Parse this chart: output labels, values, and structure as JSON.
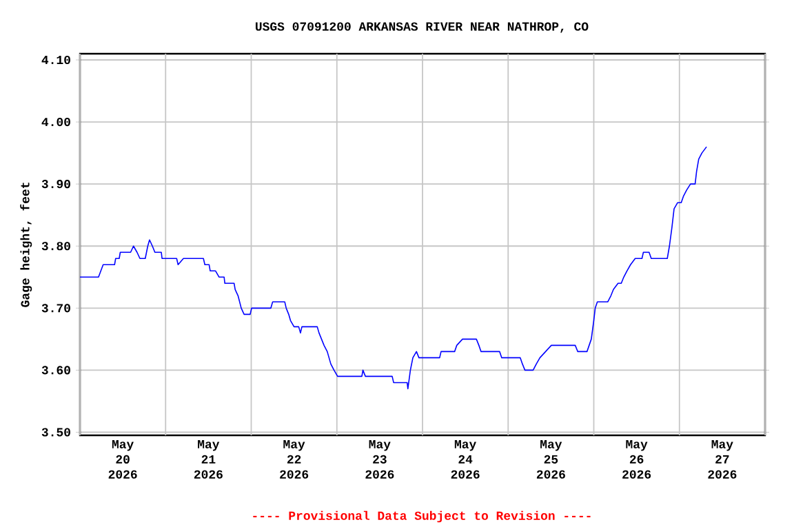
{
  "chart_data": {
    "type": "line",
    "title": "USGS 07091200 ARKANSAS RIVER NEAR NATHROP, CO",
    "ylabel": "Gage height, feet",
    "annotations": [
      "---- Provisional Data Subject to Revision ----"
    ],
    "x": [
      "2026-05-20T00:00",
      "2026-05-20T05:12",
      "2026-05-20T06:30",
      "2026-05-20T09:42",
      "2026-05-20T10:00",
      "2026-05-20T11:00",
      "2026-05-20T11:18",
      "2026-05-20T14:12",
      "2026-05-20T15:00",
      "2026-05-20T16:00",
      "2026-05-20T16:48",
      "2026-05-20T18:18",
      "2026-05-20T19:00",
      "2026-05-20T19:30",
      "2026-05-20T20:18",
      "2026-05-20T21:00",
      "2026-05-20T22:48",
      "2026-05-20T23:00",
      "2026-05-21T03:06",
      "2026-05-21T03:30",
      "2026-05-21T05:00",
      "2026-05-21T10:36",
      "2026-05-21T11:00",
      "2026-05-21T12:12",
      "2026-05-21T12:30",
      "2026-05-21T14:00",
      "2026-05-21T15:00",
      "2026-05-21T16:24",
      "2026-05-21T16:36",
      "2026-05-21T19:12",
      "2026-05-21T19:30",
      "2026-05-21T20:18",
      "2026-05-21T21:12",
      "2026-05-21T22:00",
      "2026-05-21T23:42",
      "2026-05-22T00:06",
      "2026-05-22T05:30",
      "2026-05-22T06:00",
      "2026-05-22T09:24",
      "2026-05-22T09:48",
      "2026-05-22T10:30",
      "2026-05-22T11:00",
      "2026-05-22T12:00",
      "2026-05-22T13:18",
      "2026-05-22T13:48",
      "2026-05-22T14:12",
      "2026-05-22T18:30",
      "2026-05-22T19:00",
      "2026-05-22T19:42",
      "2026-05-22T20:24",
      "2026-05-22T21:18",
      "2026-05-22T22:18",
      "2026-05-22T23:12",
      "2026-05-23T00:12",
      "2026-05-23T07:00",
      "2026-05-23T07:18",
      "2026-05-23T08:00",
      "2026-05-23T15:30",
      "2026-05-23T15:54",
      "2026-05-23T19:42",
      "2026-05-23T19:54",
      "2026-05-23T20:36",
      "2026-05-23T21:18",
      "2026-05-23T22:18",
      "2026-05-23T23:00",
      "2026-05-24T04:48",
      "2026-05-24T05:12",
      "2026-05-24T09:00",
      "2026-05-24T09:36",
      "2026-05-24T11:12",
      "2026-05-24T15:06",
      "2026-05-24T15:48",
      "2026-05-24T16:24",
      "2026-05-24T21:36",
      "2026-05-24T22:12",
      "2026-05-25T03:24",
      "2026-05-25T04:00",
      "2026-05-25T04:42",
      "2026-05-25T07:00",
      "2026-05-25T07:54",
      "2026-05-25T08:54",
      "2026-05-25T10:30",
      "2026-05-25T12:06",
      "2026-05-25T18:48",
      "2026-05-25T19:30",
      "2026-05-25T22:06",
      "2026-05-25T22:42",
      "2026-05-25T23:18",
      "2026-05-26T00:00",
      "2026-05-26T00:24",
      "2026-05-26T01:00",
      "2026-05-26T03:54",
      "2026-05-26T04:48",
      "2026-05-26T05:30",
      "2026-05-26T06:48",
      "2026-05-26T07:42",
      "2026-05-26T08:24",
      "2026-05-26T09:18",
      "2026-05-26T10:18",
      "2026-05-26T11:36",
      "2026-05-26T13:30",
      "2026-05-26T13:54",
      "2026-05-26T15:30",
      "2026-05-26T16:06",
      "2026-05-26T20:36",
      "2026-05-26T21:12",
      "2026-05-26T21:54",
      "2026-05-26T22:30",
      "2026-05-26T23:30",
      "2026-05-27T00:30",
      "2026-05-27T01:06",
      "2026-05-27T02:00",
      "2026-05-27T03:06",
      "2026-05-27T04:24",
      "2026-05-27T04:48",
      "2026-05-27T05:24",
      "2026-05-27T06:18",
      "2026-05-27T07:36"
    ],
    "series": [
      {
        "color": "#0000ff",
        "values": [
          3.75,
          3.75,
          3.77,
          3.77,
          3.78,
          3.78,
          3.79,
          3.79,
          3.8,
          3.79,
          3.78,
          3.78,
          3.8,
          3.81,
          3.8,
          3.79,
          3.79,
          3.78,
          3.78,
          3.77,
          3.78,
          3.78,
          3.77,
          3.77,
          3.76,
          3.76,
          3.75,
          3.75,
          3.74,
          3.74,
          3.73,
          3.72,
          3.7,
          3.69,
          3.69,
          3.7,
          3.7,
          3.71,
          3.71,
          3.7,
          3.69,
          3.68,
          3.67,
          3.67,
          3.66,
          3.67,
          3.67,
          3.66,
          3.65,
          3.64,
          3.63,
          3.61,
          3.6,
          3.59,
          3.59,
          3.6,
          3.59,
          3.59,
          3.58,
          3.58,
          3.57,
          3.6,
          3.62,
          3.63,
          3.62,
          3.62,
          3.63,
          3.63,
          3.64,
          3.65,
          3.65,
          3.64,
          3.63,
          3.63,
          3.62,
          3.62,
          3.61,
          3.6,
          3.6,
          3.61,
          3.62,
          3.63,
          3.64,
          3.64,
          3.63,
          3.63,
          3.64,
          3.65,
          3.68,
          3.7,
          3.71,
          3.71,
          3.72,
          3.73,
          3.74,
          3.74,
          3.75,
          3.76,
          3.77,
          3.78,
          3.78,
          3.79,
          3.79,
          3.78,
          3.78,
          3.8,
          3.83,
          3.86,
          3.87,
          3.87,
          3.88,
          3.89,
          3.9,
          3.9,
          3.92,
          3.94,
          3.95,
          3.96
        ]
      }
    ],
    "xlim": [
      "2026-05-20T00:00",
      "2026-05-28T00:00"
    ],
    "xticks": [
      {
        "value": "2026-05-20T00:00",
        "label": null
      },
      {
        "value": "2026-05-21T00:00",
        "label": null
      },
      {
        "value": "2026-05-22T00:00",
        "label": null
      },
      {
        "value": "2026-05-23T00:00",
        "label": null
      },
      {
        "value": "2026-05-24T00:00",
        "label": null
      },
      {
        "value": "2026-05-25T00:00",
        "label": null
      },
      {
        "value": "2026-05-26T00:00",
        "label": null
      },
      {
        "value": "2026-05-27T00:00",
        "label": null
      },
      {
        "value": "2026-05-28T00:00",
        "label": null
      },
      {
        "value": "2026-05-20T12:00",
        "label": "May 20 2026"
      },
      {
        "value": "2026-05-21T12:00",
        "label": "May 21 2026"
      },
      {
        "value": "2026-05-22T12:00",
        "label": "May 22 2026"
      },
      {
        "value": "2026-05-23T12:00",
        "label": "May 23 2026"
      },
      {
        "value": "2026-05-24T12:00",
        "label": "May 24 2026"
      },
      {
        "value": "2026-05-25T12:00",
        "label": "May 25 2026"
      },
      {
        "value": "2026-05-26T12:00",
        "label": "May 26 2026"
      },
      {
        "value": "2026-05-27T12:00",
        "label": "May 27 2026"
      }
    ],
    "ylim": [
      3.495,
      4.11
    ],
    "yticks": [
      {
        "value": 3.5,
        "label": "3.50"
      },
      {
        "value": 3.6,
        "label": "3.60"
      },
      {
        "value": 3.7,
        "label": "3.70"
      },
      {
        "value": 3.8,
        "label": "3.80"
      },
      {
        "value": 3.9,
        "label": "3.90"
      },
      {
        "value": 4.0,
        "label": "4.00"
      },
      {
        "value": 4.1,
        "label": "4.10"
      }
    ],
    "grid": true,
    "marker": "none",
    "line_style": "solid"
  }
}
